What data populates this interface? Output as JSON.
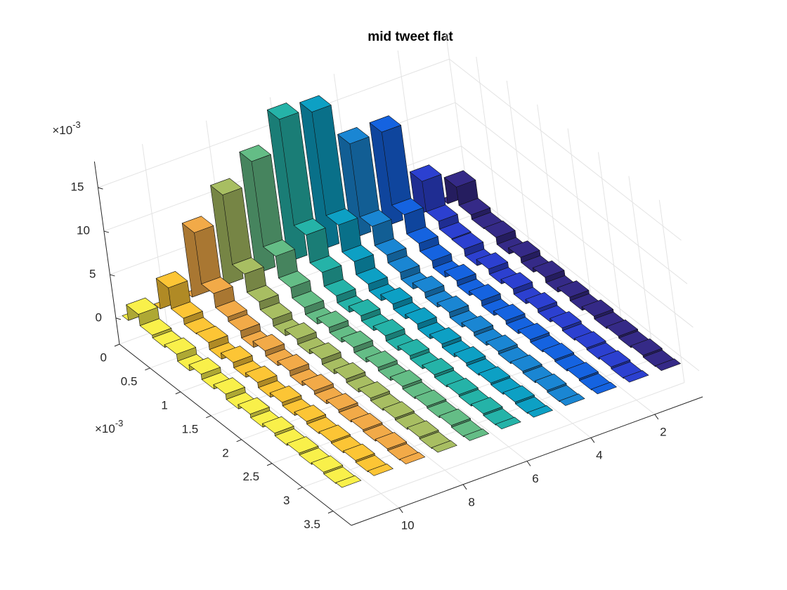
{
  "chart_data": {
    "type": "ribbon3d",
    "title": "mid tweet flat",
    "x": [
      0,
      0.2,
      0.4,
      0.6,
      0.8,
      1.0,
      1.2,
      1.4,
      1.6,
      1.8,
      2.0,
      2.2,
      2.4,
      2.6,
      2.8,
      3.0,
      3.2,
      3.4,
      3.6
    ],
    "xlim": [
      0,
      3.8
    ],
    "xticks": [
      0,
      0.5,
      1,
      1.5,
      2,
      2.5,
      3,
      3.5
    ],
    "x_exponent": {
      "base": "×10",
      "power": "-3"
    },
    "ylim": [
      0.5,
      11.5
    ],
    "yticks": [
      2,
      4,
      6,
      8,
      10
    ],
    "zlim": [
      -3,
      18
    ],
    "zticks": [
      0,
      5,
      10,
      15
    ],
    "z_exponent": {
      "base": "×10",
      "power": "-3"
    },
    "grid": true,
    "series": [
      {
        "y": 1,
        "color": "#352a87",
        "values": [
          0,
          3,
          0.9,
          0.4,
          0.5,
          -0.3,
          0.4,
          -0.2,
          0.3,
          -0.3,
          0.2,
          -0.2,
          0.2,
          -0.1,
          0.1,
          -0.1,
          0.1,
          -0.1,
          0
        ]
      },
      {
        "y": 2,
        "color": "#2c40d0",
        "values": [
          0,
          5,
          1.5,
          0.6,
          0.5,
          -0.3,
          0.4,
          -0.2,
          0.3,
          -0.3,
          0.2,
          -0.2,
          0.2,
          -0.1,
          0.1,
          -0.1,
          0.1,
          -0.1,
          0
        ]
      },
      {
        "y": 3,
        "color": "#1563e0",
        "values": [
          0,
          12,
          3.6,
          1.4,
          0.5,
          -0.3,
          0.4,
          -0.2,
          0.3,
          -0.3,
          0.2,
          -0.2,
          0.2,
          -0.1,
          0.1,
          -0.1,
          0.1,
          -0.1,
          0
        ]
      },
      {
        "y": 4,
        "color": "#1a86d3",
        "values": [
          0,
          12,
          3.6,
          1.4,
          0.5,
          -0.3,
          0.4,
          -0.2,
          0.3,
          -0.3,
          0.2,
          -0.2,
          0.2,
          -0.1,
          0.1,
          -0.1,
          0.1,
          -0.1,
          0
        ]
      },
      {
        "y": 5,
        "color": "#0da0c4",
        "values": [
          0,
          17,
          5.1,
          2,
          0.5,
          -0.3,
          0.4,
          -0.2,
          0.3,
          -0.3,
          0.2,
          -0.2,
          0.2,
          -0.1,
          0.1,
          -0.1,
          0.1,
          -0.1,
          0
        ]
      },
      {
        "y": 6,
        "color": "#25b3a8",
        "values": [
          0,
          17.5,
          5.3,
          2.1,
          0.5,
          -0.3,
          0.4,
          -0.2,
          0.3,
          -0.3,
          0.2,
          -0.2,
          0.2,
          -0.1,
          0.1,
          -0.1,
          0.1,
          -0.1,
          0
        ]
      },
      {
        "y": 7,
        "color": "#64bd86",
        "values": [
          0,
          14,
          4.2,
          1.7,
          0.5,
          -0.3,
          0.4,
          -0.2,
          0.3,
          -0.3,
          0.2,
          -0.2,
          0.2,
          -0.1,
          0.1,
          -0.1,
          0.1,
          -0.1,
          0
        ]
      },
      {
        "y": 8,
        "color": "#a8be62",
        "values": [
          0,
          11.5,
          3.5,
          1.4,
          0.5,
          -0.3,
          0.4,
          -0.2,
          0.3,
          -0.3,
          0.2,
          -0.2,
          0.2,
          -0.1,
          0.1,
          -0.1,
          0.1,
          -0.1,
          0
        ]
      },
      {
        "y": 9,
        "color": "#f2aa48",
        "values": [
          0,
          8.5,
          2.6,
          1,
          0.5,
          -0.3,
          0.4,
          -0.2,
          0.3,
          -0.3,
          0.2,
          -0.2,
          0.2,
          -0.1,
          0.1,
          -0.1,
          0.1,
          -0.1,
          0
        ]
      },
      {
        "y": 10,
        "color": "#fcc535",
        "values": [
          0,
          3.5,
          1.1,
          0.4,
          0.5,
          -0.3,
          0.4,
          -0.2,
          0.3,
          -0.3,
          0.2,
          -0.2,
          0.2,
          -0.1,
          0.1,
          -0.1,
          0.1,
          -0.1,
          0
        ]
      },
      {
        "y": 11,
        "color": "#f9f04a",
        "values": [
          0,
          1.8,
          0.5,
          0.2,
          0.5,
          -0.3,
          0.4,
          -0.2,
          0.3,
          -0.3,
          0.2,
          -0.2,
          0.2,
          -0.1,
          0.1,
          -0.1,
          0.1,
          -0.1,
          0
        ]
      }
    ]
  }
}
